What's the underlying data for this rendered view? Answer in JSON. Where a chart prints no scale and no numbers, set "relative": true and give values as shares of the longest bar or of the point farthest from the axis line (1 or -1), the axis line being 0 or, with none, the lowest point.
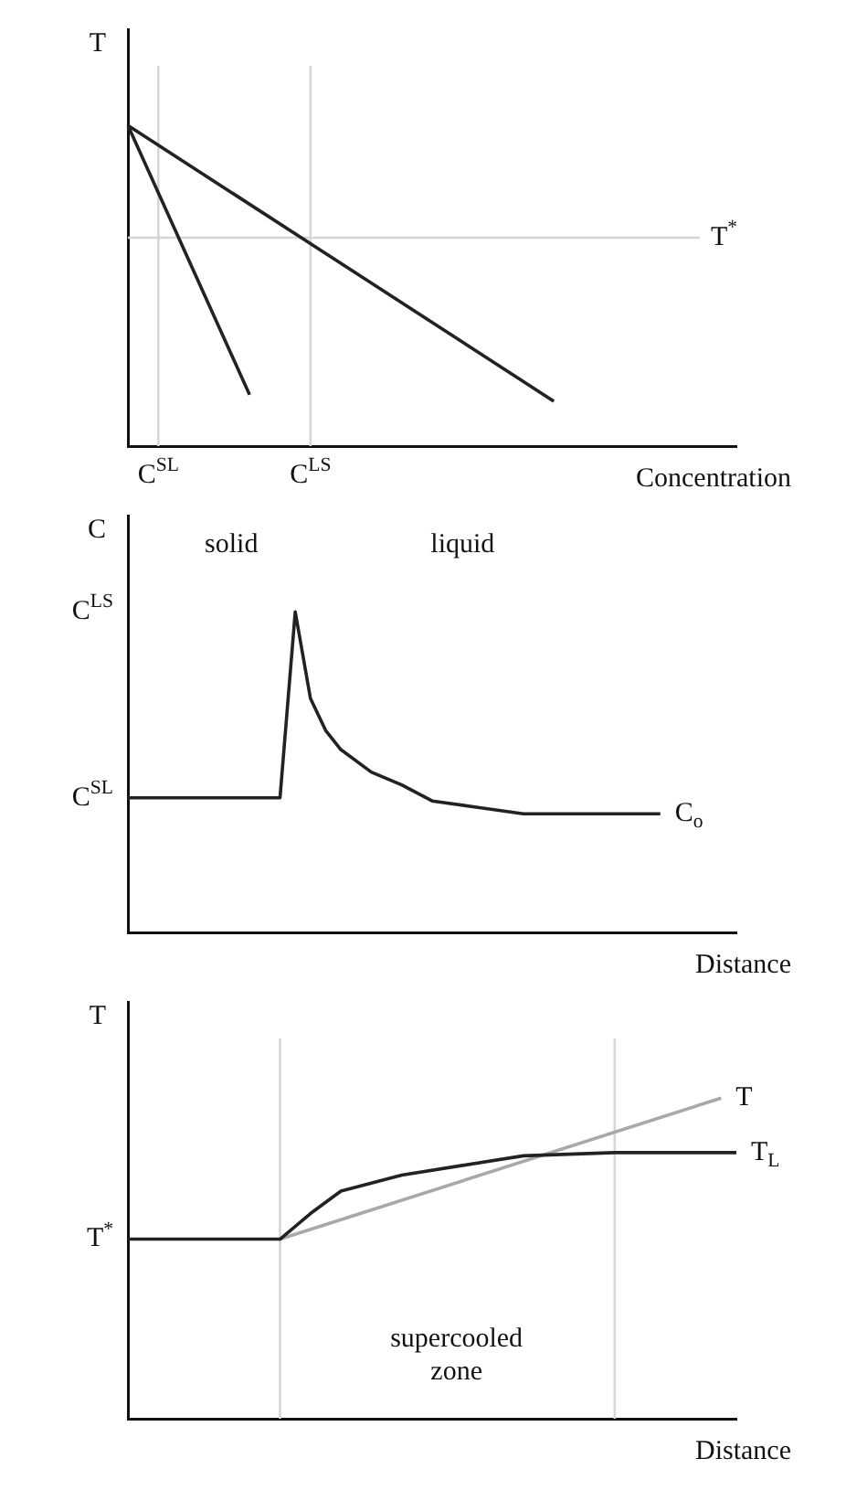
{
  "chart_data": [
    {
      "type": "line",
      "ylabel": "T",
      "xlabel": "Concentration",
      "relative": true,
      "legend": false,
      "grid": "x",
      "marker": "none",
      "categories": [
        null,
        "C$^{SL}$",
        null,
        null,
        null,
        null,
        "C$^{LS}$",
        null,
        null,
        null,
        null,
        null,
        null,
        null,
        null,
        null,
        null,
        null,
        null,
        null,
        null
      ],
      "series": [
        {
          "color": "#222222",
          "values": [
            1,
            null,
            null,
            null,
            null,
            null,
            null,
            null,
            null,
            null,
            null,
            null,
            null,
            null,
            0.14,
            null,
            null,
            null,
            null,
            null,
            null
          ]
        },
        {
          "color": "#222222",
          "values": [
            1,
            null,
            null,
            null,
            0.16,
            null,
            null,
            null,
            null,
            null,
            null,
            null,
            null,
            null,
            null,
            null,
            null,
            null,
            null,
            null,
            null
          ]
        }
      ],
      "ref_lines": [
        {
          "axis": "y",
          "value": 0.65,
          "label": "T$^{*}$",
          "color": "#d6d6d6"
        }
      ]
    },
    {
      "type": "line",
      "ylabel": "C",
      "xlabel": "Distance",
      "relative": true,
      "legend": false,
      "grid": false,
      "marker": "none",
      "categories": [
        null,
        null,
        null,
        null,
        null,
        null,
        null,
        null,
        null,
        null,
        null,
        null,
        null,
        null,
        null,
        null,
        null,
        null,
        null,
        null,
        null,
        null,
        null,
        null,
        null,
        null,
        null,
        null,
        null,
        null,
        null,
        null,
        null,
        null,
        null,
        null,
        null,
        null,
        null,
        null,
        null
      ],
      "series": [
        {
          "name": "C$_{o}$",
          "color": "#222222",
          "values": [
            0.42,
            null,
            null,
            null,
            null,
            null,
            null,
            null,
            null,
            null,
            0.42,
            1,
            0.73,
            0.63,
            0.57,
            null,
            0.5,
            null,
            0.46,
            null,
            0.41,
            null,
            null,
            0.39,
            null,
            null,
            0.37,
            null,
            null,
            null,
            null,
            null,
            null,
            null,
            null,
            0.37,
            null,
            null,
            null,
            null,
            null
          ]
        }
      ],
      "annotations": [
        "C$^{LS}$",
        "C$^{SL}$",
        "solid",
        "liquid"
      ]
    },
    {
      "type": "line",
      "ylabel": "T",
      "xlabel": "Distance",
      "relative": true,
      "legend": false,
      "grid": false,
      "marker": "none",
      "categories": [
        null,
        null,
        null,
        null,
        null,
        null,
        null,
        null,
        null,
        null,
        null,
        null,
        null,
        null,
        null,
        null,
        null,
        null,
        null,
        null,
        null,
        null,
        null,
        null,
        null,
        null,
        null,
        null,
        null,
        null,
        null,
        null,
        null,
        null,
        null,
        null,
        null,
        null,
        null,
        null,
        null
      ],
      "series": [
        {
          "name": "T$_{L}$",
          "color": "#222222",
          "values": [
            0.56,
            null,
            null,
            null,
            null,
            null,
            null,
            null,
            null,
            null,
            0.56,
            null,
            0.64,
            null,
            0.71,
            null,
            null,
            null,
            0.76,
            null,
            null,
            null,
            0.79,
            null,
            null,
            null,
            0.82,
            null,
            null,
            null,
            null,
            null,
            0.83,
            null,
            null,
            null,
            null,
            null,
            null,
            null,
            0.83
          ]
        },
        {
          "name": "T",
          "color": "#a8a8a8",
          "values": [
            null,
            null,
            null,
            null,
            null,
            null,
            null,
            null,
            null,
            null,
            0.56,
            null,
            null,
            null,
            null,
            null,
            null,
            null,
            null,
            null,
            null,
            null,
            null,
            null,
            null,
            null,
            null,
            null,
            null,
            null,
            null,
            null,
            null,
            null,
            null,
            null,
            null,
            null,
            null,
            1,
            null
          ]
        }
      ],
      "annotations": [
        "T$^{*}$",
        "supercooled\nzone"
      ]
    }
  ]
}
